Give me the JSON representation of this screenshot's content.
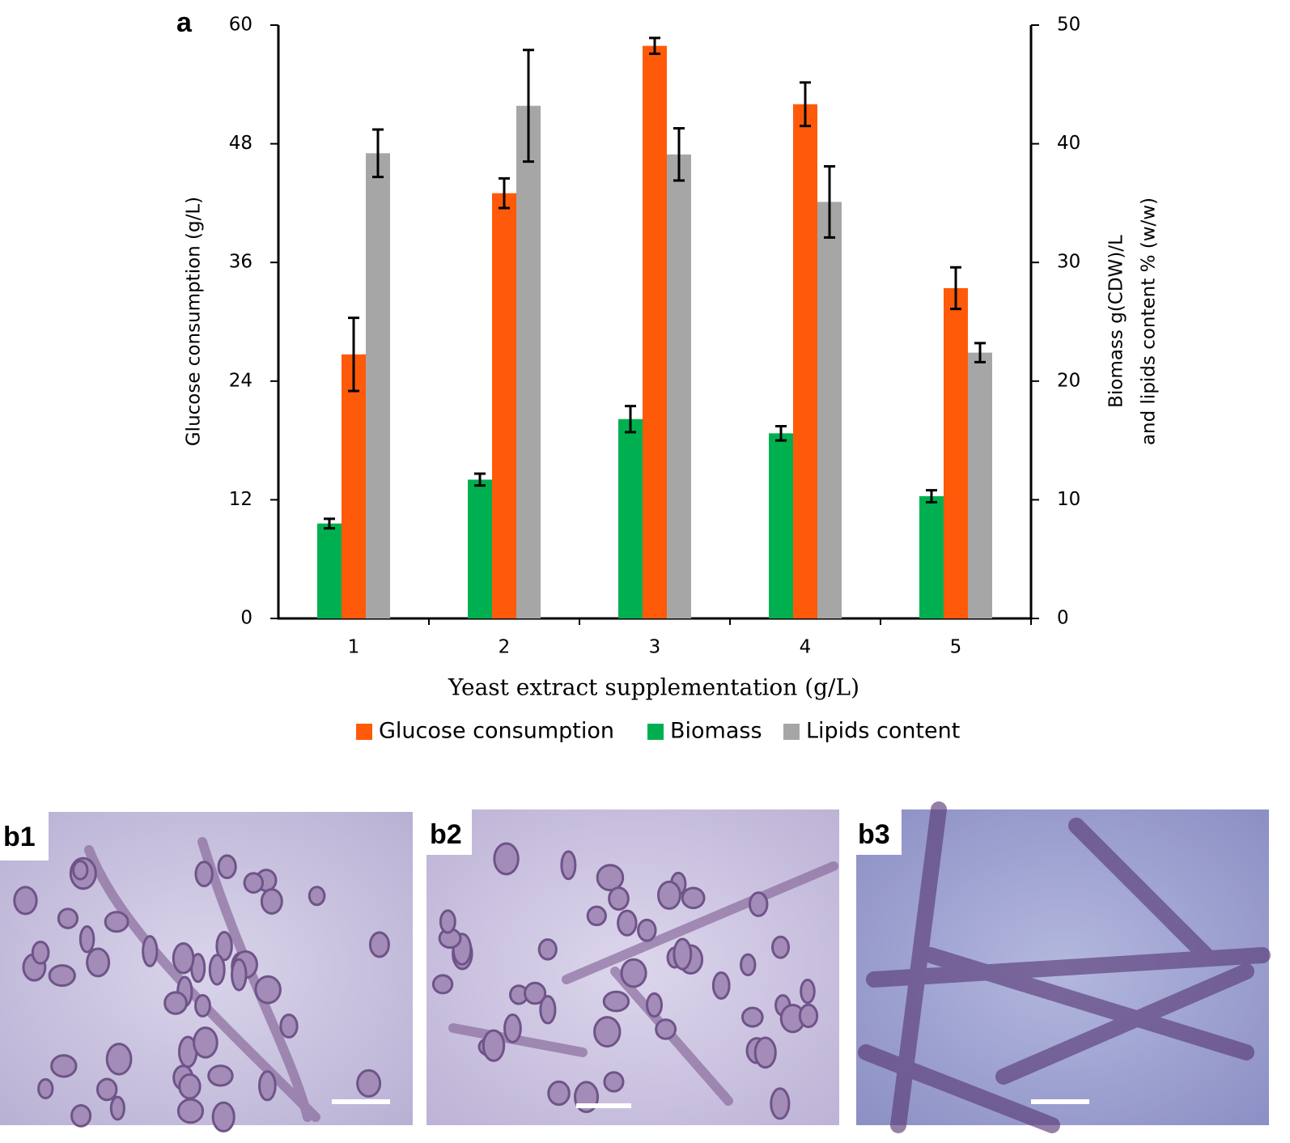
{
  "chart_data": {
    "type": "bar",
    "panel_label": "a",
    "xlabel": "Yeast extract supplementation (g/L)",
    "ylabel": "Glucose consumption (g/L)",
    "y2label": [
      "Biomass  g(CDW)/L",
      "and lipids content % (w/w)"
    ],
    "categories": [
      "1",
      "2",
      "3",
      "4",
      "5"
    ],
    "ylim": [
      0,
      60
    ],
    "yticks": [
      0,
      12,
      24,
      36,
      48,
      60
    ],
    "y2lim": [
      0,
      50
    ],
    "y2ticks": [
      0,
      10,
      20,
      30,
      40,
      50
    ],
    "legend": "bottom",
    "series": [
      {
        "name": "Glucose consumption",
        "color": "#ff5a0a",
        "axis": "y",
        "values": [
          26.7,
          43.0,
          57.9,
          52.0,
          33.4
        ],
        "errors": [
          3.7,
          1.5,
          0.8,
          2.2,
          2.1
        ]
      },
      {
        "name": "Biomass",
        "color": "#00b050",
        "axis": "y2",
        "values": [
          8.0,
          11.7,
          16.8,
          15.6,
          10.3
        ],
        "errors": [
          0.4,
          0.5,
          1.1,
          0.6,
          0.5
        ]
      },
      {
        "name": "Lipids content",
        "color": "#a6a6a6",
        "axis": "y2",
        "values": [
          39.2,
          43.2,
          39.1,
          35.1,
          22.4
        ],
        "errors": [
          2.0,
          4.7,
          2.2,
          3.0,
          0.8
        ]
      }
    ]
  },
  "images": [
    {
      "label": "b1"
    },
    {
      "label": "b2"
    },
    {
      "label": "b3"
    }
  ]
}
